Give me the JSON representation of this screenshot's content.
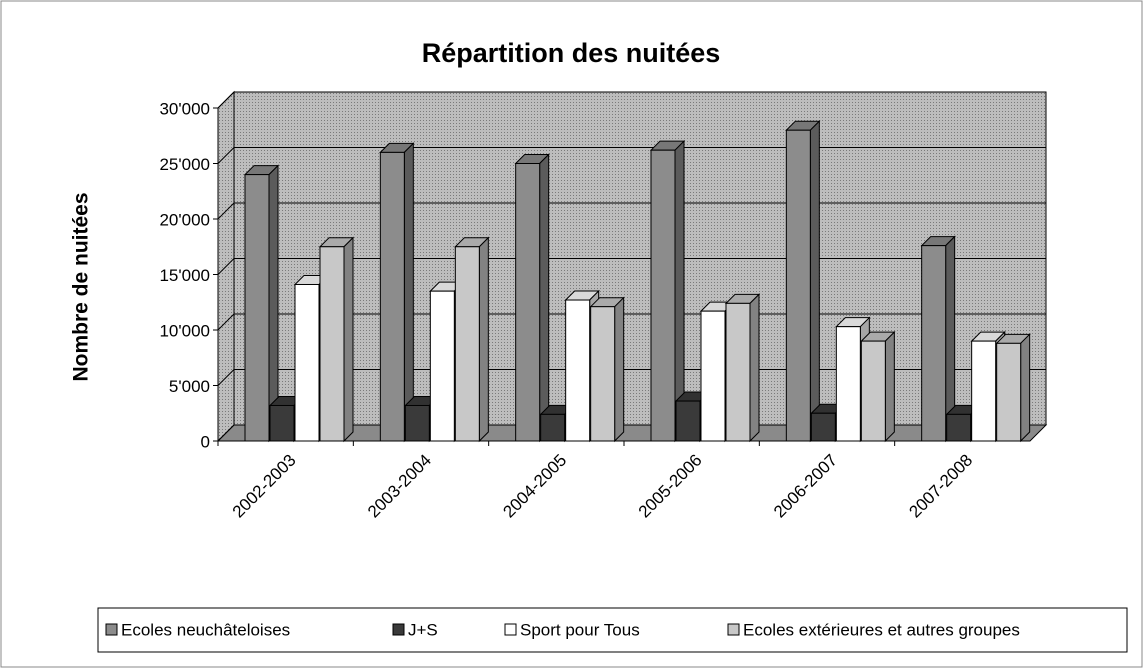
{
  "chart_data": {
    "type": "bar3d",
    "title": "Répartition des nuitées",
    "y_label": "Nombre de nuitées",
    "categories": [
      "2002-2003",
      "2003-2004",
      "2004-2005",
      "2005-2006",
      "2006-2007",
      "2007-2008"
    ],
    "series": [
      {
        "name": "Ecoles neuchâteloises",
        "color": "#8c8c8c",
        "values": [
          24000,
          26000,
          25000,
          26200,
          28000,
          17600
        ]
      },
      {
        "name": "J+S",
        "color": "#3a3a3a",
        "values": [
          3200,
          3200,
          2400,
          3600,
          2500,
          2400
        ]
      },
      {
        "name": "Sport pour Tous",
        "color": "#ffffff",
        "values": [
          14100,
          13500,
          12700,
          11700,
          10300,
          9000
        ]
      },
      {
        "name": "Ecoles extérieures et autres groupes",
        "color": "#c8c8c8",
        "values": [
          17500,
          17500,
          12100,
          12400,
          9000,
          8800
        ]
      }
    ],
    "ylim": [
      0,
      30000
    ],
    "yticks": [
      0,
      {
        "value": 5000,
        "label": "5'000"
      },
      {
        "value": 10000,
        "label": "10'000"
      },
      {
        "value": 15000,
        "label": "15'000"
      },
      {
        "value": 20000,
        "label": "20'000"
      },
      {
        "value": 25000,
        "label": "25'000"
      },
      {
        "value": 30000,
        "label": "30'000"
      }
    ],
    "grid": true,
    "legend": "bottom"
  }
}
